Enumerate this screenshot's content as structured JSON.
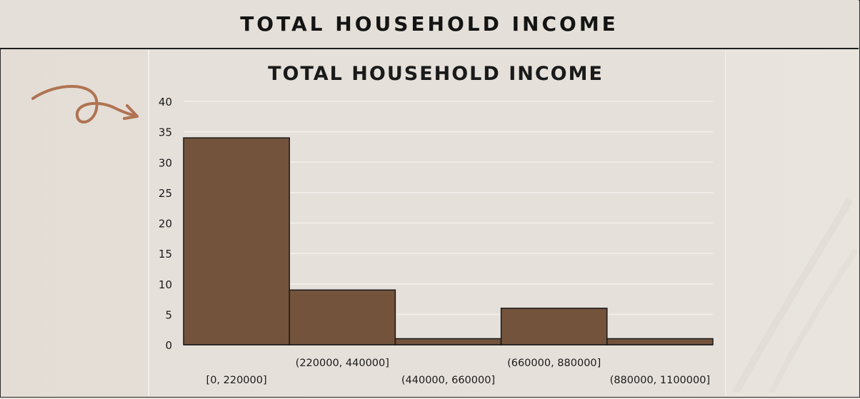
{
  "header": {
    "title": "TOTAL HOUSEHOLD INCOME"
  },
  "decor": {
    "arrow_icon": "curly-arrow-icon",
    "arrow_color": "#b07352"
  },
  "colors": {
    "bar_fill": "#73533c",
    "bar_stroke": "#1a1a1a",
    "grid": "#f3f0ec",
    "text": "#1a1a1a"
  },
  "chart_data": {
    "type": "bar",
    "title": "TOTAL HOUSEHOLD INCOME",
    "xlabel": "",
    "ylabel": "",
    "categories": [
      "[0, 220000]",
      "(220000, 440000]",
      "(440000, 660000]",
      "(660000, 880000]",
      "(880000, 1100000]"
    ],
    "values": [
      34,
      9,
      1,
      6,
      1
    ],
    "ylim": [
      0,
      40
    ],
    "yticks": [
      "0",
      "5",
      "10",
      "15",
      "20",
      "25",
      "30",
      "35",
      "40"
    ],
    "grid": true,
    "legend": "none"
  }
}
